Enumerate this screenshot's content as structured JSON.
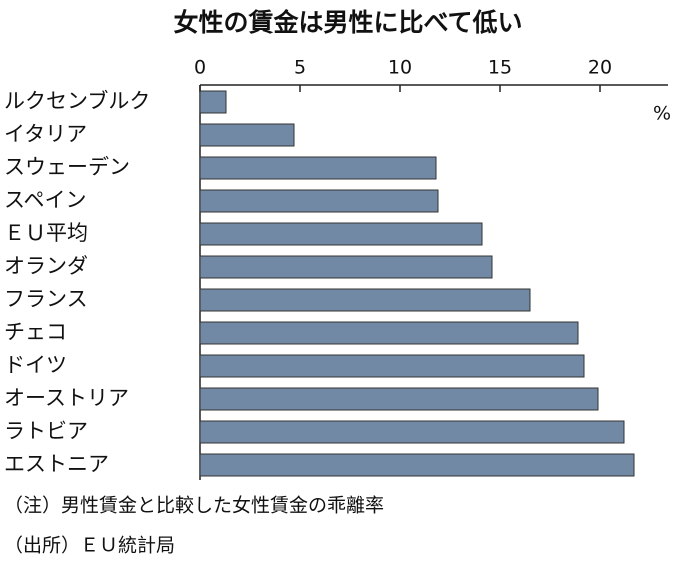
{
  "chart_data": {
    "type": "bar",
    "orientation": "horizontal",
    "title": "女性の賃金は男性に比べて低い",
    "unit_label": "%",
    "categories": [
      "ルクセンブルク",
      "イタリア",
      "スウェーデン",
      "スペイン",
      "ＥＵ平均",
      "オランダ",
      "フランス",
      "チェコ",
      "ドイツ",
      "オーストリア",
      "ラトビア",
      "エストニア"
    ],
    "values": [
      1.3,
      4.7,
      11.8,
      11.9,
      14.1,
      14.6,
      16.5,
      18.9,
      19.2,
      19.9,
      21.2,
      21.7
    ],
    "color": "#7189a4",
    "xlim": [
      0,
      23.4
    ],
    "xticks": [
      0,
      5,
      10,
      15,
      20
    ],
    "notes": [
      "（注）男性賃金と比較した女性賃金の乖離率",
      "（出所）ＥＵ統計局"
    ]
  }
}
